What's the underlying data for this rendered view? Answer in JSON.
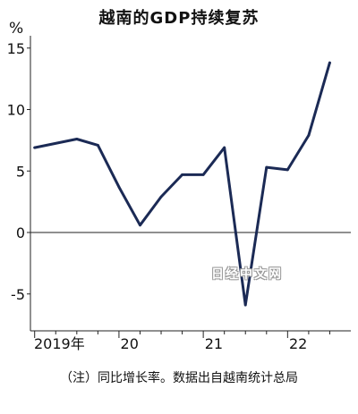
{
  "chart_data": {
    "type": "line",
    "title": "越南的GDP持续复苏",
    "unit": "%",
    "xlabel": "",
    "ylabel": "",
    "ylim": [
      -8,
      16
    ],
    "yticks": [
      15,
      10,
      5,
      0,
      -5
    ],
    "x_tick_labels": [
      "2019年",
      "20",
      "21",
      "22"
    ],
    "grid": false,
    "series": [
      {
        "color": "#1b2a55",
        "points": [
          {
            "x": 2019.0,
            "y": 6.9
          },
          {
            "x": 2019.5,
            "y": 7.6
          },
          {
            "x": 2019.75,
            "y": 7.1
          },
          {
            "x": 2020.0,
            "y": 3.7
          },
          {
            "x": 2020.25,
            "y": 0.6
          },
          {
            "x": 2020.5,
            "y": 2.9
          },
          {
            "x": 2020.75,
            "y": 4.7
          },
          {
            "x": 2021.0,
            "y": 4.7
          },
          {
            "x": 2021.25,
            "y": 6.9
          },
          {
            "x": 2021.5,
            "y": -5.9
          },
          {
            "x": 2021.75,
            "y": 5.3
          },
          {
            "x": 2022.0,
            "y": 5.1
          },
          {
            "x": 2022.25,
            "y": 7.9
          },
          {
            "x": 2022.5,
            "y": 13.8
          }
        ]
      }
    ]
  },
  "footnote": "（注）同比增长率。数据出自越南统计总局",
  "watermark": "日经中文网"
}
